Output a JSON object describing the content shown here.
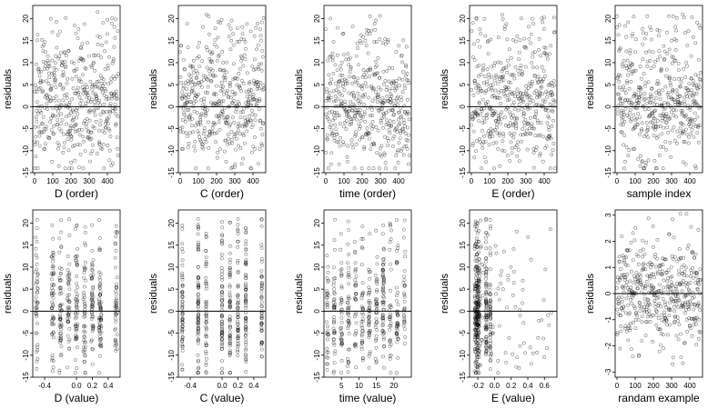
{
  "chart_data": [
    {
      "type": "scatter",
      "panel": "D-order",
      "xlabel": "D (order)",
      "ylabel": "residuals",
      "xlim": [
        -10,
        470
      ],
      "ylim": [
        -15,
        23
      ],
      "xticks": [
        0,
        100,
        200,
        300,
        400
      ],
      "yticks": [
        -15,
        -10,
        -5,
        0,
        5,
        10,
        15,
        20
      ],
      "mode": "order",
      "seed": 11,
      "hline": 0
    },
    {
      "type": "scatter",
      "panel": "C-order",
      "xlabel": "C (order)",
      "ylabel": "residuals",
      "xlim": [
        -10,
        470
      ],
      "ylim": [
        -15,
        23
      ],
      "xticks": [
        0,
        100,
        200,
        300,
        400
      ],
      "yticks": [
        -15,
        -10,
        -5,
        0,
        5,
        10,
        15,
        20
      ],
      "mode": "order",
      "seed": 23,
      "hline": 0
    },
    {
      "type": "scatter",
      "panel": "time-order",
      "xlabel": "time (order)",
      "ylabel": "residuals",
      "xlim": [
        -10,
        470
      ],
      "ylim": [
        -15,
        23
      ],
      "xticks": [
        0,
        100,
        200,
        300,
        400
      ],
      "yticks": [
        -15,
        -10,
        -5,
        0,
        5,
        10,
        15,
        20
      ],
      "mode": "order",
      "seed": 37,
      "hline": 0
    },
    {
      "type": "scatter",
      "panel": "E-order",
      "xlabel": "E (order)",
      "ylabel": "residuals",
      "xlim": [
        -10,
        470
      ],
      "ylim": [
        -15,
        23
      ],
      "xticks": [
        0,
        100,
        200,
        300,
        400
      ],
      "yticks": [
        -15,
        -10,
        -5,
        0,
        5,
        10,
        15,
        20
      ],
      "mode": "order",
      "seed": 41,
      "hline": 0
    },
    {
      "type": "scatter",
      "panel": "sample-index",
      "xlabel": "sample index",
      "ylabel": "residuals",
      "xlim": [
        -10,
        470
      ],
      "ylim": [
        -15,
        23
      ],
      "xticks": [
        0,
        100,
        200,
        300,
        400
      ],
      "yticks": [
        -15,
        -10,
        -5,
        0,
        5,
        10,
        15,
        20
      ],
      "mode": "order",
      "seed": 53,
      "hline": 0
    },
    {
      "type": "scatter",
      "panel": "D-value",
      "xlabel": "D (value)",
      "ylabel": "residuals",
      "xlim": [
        -0.55,
        0.55
      ],
      "ylim": [
        -15,
        23
      ],
      "xticks": [
        -0.4,
        0.0,
        0.2,
        0.4
      ],
      "xticklabels": [
        "-0.4",
        "0.0",
        "0.2",
        "0.4"
      ],
      "yticks": [
        -15,
        -10,
        -5,
        0,
        5,
        10,
        15,
        20
      ],
      "mode": "levels",
      "levels": [
        -0.5,
        -0.3,
        -0.2,
        -0.1,
        0,
        0.1,
        0.2,
        0.3,
        0.5
      ],
      "jitter": 0.015,
      "seed": 61,
      "hline": 0
    },
    {
      "type": "scatter",
      "panel": "C-value",
      "xlabel": "C (value)",
      "ylabel": "residuals",
      "xlim": [
        -0.55,
        0.55
      ],
      "ylim": [
        -15,
        23
      ],
      "xticks": [
        -0.4,
        0.0,
        0.2,
        0.4
      ],
      "xticklabels": [
        "-0.4",
        "0.0",
        "0.2",
        "0.4"
      ],
      "yticks": [
        -15,
        -10,
        -5,
        0,
        5,
        10,
        15,
        20
      ],
      "mode": "levels",
      "levels": [
        -0.5,
        -0.3,
        -0.2,
        0,
        0.1,
        0.2,
        0.3,
        0.5
      ],
      "jitter": 0.004,
      "seed": 67,
      "hline": 0
    },
    {
      "type": "scatter",
      "panel": "time-value",
      "xlabel": "time (value)",
      "ylabel": "residuals",
      "xlim": [
        0,
        25
      ],
      "ylim": [
        -15,
        23
      ],
      "xticks": [
        5,
        10,
        15,
        20
      ],
      "yticks": [
        -15,
        -10,
        -5,
        0,
        5,
        10,
        15,
        20
      ],
      "mode": "levels",
      "levels": [
        1,
        3,
        5,
        7,
        9,
        11,
        13,
        15,
        17,
        19,
        21,
        23
      ],
      "jitter": 0.25,
      "seed": 71,
      "hline": 0
    },
    {
      "type": "scatter",
      "panel": "E-value",
      "xlabel": "E (value)",
      "ylabel": "residuals",
      "xlim": [
        -0.3,
        0.75
      ],
      "ylim": [
        -15,
        23
      ],
      "xticks": [
        -0.2,
        0.0,
        0.2,
        0.4,
        0.6
      ],
      "xticklabels": [
        "-0.2",
        "0.0",
        "0.2",
        "0.4",
        "0.6"
      ],
      "yticks": [
        -15,
        -10,
        -5,
        0,
        5,
        10,
        15,
        20
      ],
      "mode": "skew",
      "seed": 83,
      "hline": 0
    },
    {
      "type": "scatter",
      "panel": "random-example",
      "xlabel": "randam example",
      "ylabel": "residuals",
      "xlim": [
        -10,
        470
      ],
      "ylim": [
        -3.2,
        3.2
      ],
      "xticks": [
        0,
        100,
        200,
        300,
        400
      ],
      "yticks": [
        -3,
        -2,
        -1,
        0,
        1,
        2,
        3
      ],
      "mode": "normal",
      "seed": 97,
      "hline": 0
    }
  ]
}
